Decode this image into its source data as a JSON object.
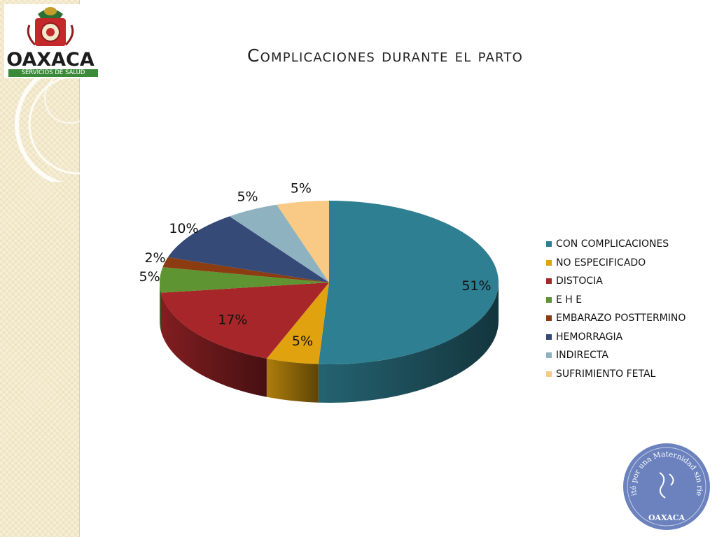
{
  "page": {
    "title": "Complicaciones durante el parto",
    "logo": {
      "name": "OAXACA",
      "subtitle": "SERVICIOS DE SALUD"
    },
    "seal": {
      "arc_text": "Comité por una Maternidad sin riesgos",
      "bottom_text": "OAXACA",
      "color": "#6b82be"
    }
  },
  "chart_data": {
    "type": "pie",
    "three_d": true,
    "categories": [
      "CON COMPLICACIONES",
      "NO ESPECIFICADO",
      "DISTOCIA",
      "E H E",
      "EMBARAZO POSTTERMINO",
      "HEMORRAGIA",
      "INDIRECTA",
      "SUFRIMIENTO FETAL"
    ],
    "values": [
      51,
      5,
      17,
      5,
      2,
      10,
      5,
      5
    ],
    "data_labels": [
      "51%",
      "5%",
      "17%",
      "5%",
      "2%",
      "10%",
      "5%",
      "5%"
    ],
    "colors": [
      "#2e7f91",
      "#e0a20e",
      "#a7262a",
      "#5f9432",
      "#8b3c10",
      "#364a78",
      "#8fb2c1",
      "#f8ca86"
    ],
    "legend_position": "right",
    "title": ""
  }
}
